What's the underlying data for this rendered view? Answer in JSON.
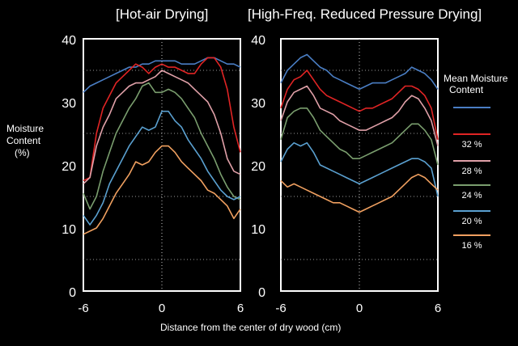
{
  "chart_data": [
    {
      "type": "line",
      "title": "[Hot-air Drying]",
      "xlabel": "Distance from the center of dry wood (cm)",
      "ylabel": "Moisture Content (%)",
      "xlim": [
        -6,
        6
      ],
      "ylim": [
        0,
        40
      ],
      "xticks": [
        "-6",
        "0",
        "6"
      ],
      "yticks": [
        "0",
        "10",
        "20",
        "30",
        "40"
      ],
      "grid": "dotted horizontal at 5, 15, 25, 35; dotted vertical at 0",
      "series": [
        {
          "name": "",
          "color": "#4a7ec4",
          "x": [
            -6,
            -5.5,
            -5,
            -4.5,
            -4,
            -3.5,
            -3,
            -2.5,
            -2,
            -1.5,
            -1,
            -0.5,
            0,
            0.5,
            1,
            1.5,
            2,
            2.5,
            3,
            3.5,
            4,
            4.5,
            5,
            5.5,
            6
          ],
          "y": [
            31.5,
            32.5,
            33,
            33.5,
            34,
            34.5,
            35,
            35.5,
            35.5,
            36,
            36,
            36.5,
            36.5,
            36.5,
            36.5,
            36,
            36,
            36,
            36.5,
            37,
            37,
            36.5,
            36,
            36,
            35.5
          ]
        },
        {
          "name": "32 %",
          "color": "#e02424",
          "x": [
            -6,
            -5.5,
            -5,
            -4.5,
            -4,
            -3.5,
            -3,
            -2.5,
            -2,
            -1.5,
            -1,
            -0.5,
            0,
            0.5,
            1,
            1.5,
            2,
            2.5,
            3,
            3.5,
            4,
            4.5,
            5,
            5.5,
            6
          ],
          "y": [
            17.5,
            18,
            25,
            29,
            31,
            33,
            34,
            35,
            36,
            35.5,
            34.5,
            35.5,
            36,
            35.5,
            35.5,
            35,
            34.5,
            34.5,
            36,
            37,
            37,
            35.5,
            32,
            26,
            22
          ]
        },
        {
          "name": "28 %",
          "color": "#e0a0a8",
          "x": [
            -6,
            -5.5,
            -5,
            -4.5,
            -4,
            -3.5,
            -3,
            -2.5,
            -2,
            -1.5,
            -1,
            -0.5,
            0,
            0.5,
            1,
            1.5,
            2,
            2.5,
            3,
            3.5,
            4,
            4.5,
            5,
            5.5,
            6
          ],
          "y": [
            17,
            18,
            23,
            26,
            28,
            30.5,
            31.5,
            32.5,
            33,
            33,
            33.5,
            34,
            35,
            34.5,
            34,
            33.5,
            33,
            32,
            31,
            30,
            28,
            25,
            21,
            19,
            18.5
          ]
        },
        {
          "name": "24 %",
          "color": "#7a9e6e",
          "x": [
            -6,
            -5.5,
            -5,
            -4.5,
            -4,
            -3.5,
            -3,
            -2.5,
            -2,
            -1.5,
            -1,
            -0.5,
            0,
            0.5,
            1,
            1.5,
            2,
            2.5,
            3,
            3.5,
            4,
            4.5,
            5,
            5.5,
            6
          ],
          "y": [
            15.5,
            13,
            15,
            19,
            22,
            25,
            27,
            29,
            30.5,
            32.5,
            33,
            31.5,
            31.5,
            32,
            31.5,
            30.5,
            29,
            27.5,
            25,
            23,
            21,
            18.5,
            16.5,
            15,
            14.5
          ]
        },
        {
          "name": "20 %",
          "color": "#5aa0d0",
          "x": [
            -6,
            -5.5,
            -5,
            -4.5,
            -4,
            -3.5,
            -3,
            -2.5,
            -2,
            -1.5,
            -1,
            -0.5,
            0,
            0.5,
            1,
            1.5,
            2,
            2.5,
            3,
            3.5,
            4,
            4.5,
            5,
            5.5,
            6
          ],
          "y": [
            12,
            10.5,
            12,
            14,
            17,
            19,
            21,
            23,
            24.5,
            26,
            25.5,
            26,
            28.5,
            28.5,
            27,
            26,
            24,
            22.5,
            21,
            19,
            17.5,
            16,
            15,
            14.5,
            15
          ]
        },
        {
          "name": "16 %",
          "color": "#f0a060",
          "x": [
            -6,
            -5.5,
            -5,
            -4.5,
            -4,
            -3.5,
            -3,
            -2.5,
            -2,
            -1.5,
            -1,
            -0.5,
            0,
            0.5,
            1,
            1.5,
            2,
            2.5,
            3,
            3.5,
            4,
            4.5,
            5,
            5.5,
            6
          ],
          "y": [
            9,
            9.5,
            10,
            11.5,
            13.5,
            15.5,
            17,
            18.5,
            20.5,
            20,
            20.5,
            22,
            23,
            23,
            22,
            20.5,
            19.5,
            18.5,
            17.5,
            16,
            15.5,
            14.5,
            13.5,
            11.5,
            13
          ]
        }
      ]
    },
    {
      "type": "line",
      "title": "[High-Freq. Reduced Pressure Drying]",
      "xlabel": "Distance from the center of dry wood (cm)",
      "ylabel": "Moisture Content (%)",
      "xlim": [
        -6,
        6
      ],
      "ylim": [
        0,
        40
      ],
      "xticks": [
        "-6",
        "0",
        "6"
      ],
      "yticks": [
        "0",
        "10",
        "20",
        "30",
        "40"
      ],
      "grid": "dotted horizontal at 5, 15, 25, 35; dotted vertical at 0",
      "series": [
        {
          "name": "",
          "color": "#4a7ec4",
          "x": [
            -6,
            -5.5,
            -5,
            -4.5,
            -4,
            -3.5,
            -3,
            -2.5,
            -2,
            -1.5,
            -1,
            -0.5,
            0,
            0.5,
            1,
            1.5,
            2,
            2.5,
            3,
            3.5,
            4,
            4.5,
            5,
            5.5,
            6
          ],
          "y": [
            33,
            35,
            36,
            37,
            37.5,
            36.5,
            35.5,
            35,
            34,
            33.5,
            33,
            32.5,
            32,
            32.5,
            33,
            33,
            33,
            33.5,
            34,
            34.5,
            35.5,
            35,
            34.5,
            33.5,
            32
          ]
        },
        {
          "name": "32 %",
          "color": "#e02424",
          "x": [
            -6,
            -5.5,
            -5,
            -4.5,
            -4,
            -3.5,
            -3,
            -2.5,
            -2,
            -1.5,
            -1,
            -0.5,
            0,
            0.5,
            1,
            1.5,
            2,
            2.5,
            3,
            3.5,
            4,
            4.5,
            5,
            5.5,
            6
          ],
          "y": [
            29,
            32,
            33.5,
            34,
            35,
            33.5,
            32,
            31,
            30.5,
            30,
            29.5,
            29,
            28.5,
            29,
            29,
            29.5,
            30,
            30.5,
            31.5,
            32.5,
            32.5,
            32,
            31,
            29,
            24
          ]
        },
        {
          "name": "28 %",
          "color": "#e0a0a8",
          "x": [
            -6,
            -5.5,
            -5,
            -4.5,
            -4,
            -3.5,
            -3,
            -2.5,
            -2,
            -1.5,
            -1,
            -0.5,
            0,
            0.5,
            1,
            1.5,
            2,
            2.5,
            3,
            3.5,
            4,
            4.5,
            5,
            5.5,
            6
          ],
          "y": [
            27,
            30,
            31.5,
            32,
            32.5,
            31,
            29,
            28.5,
            28,
            27,
            26.5,
            26,
            25.5,
            25.5,
            26,
            26.5,
            27,
            27.5,
            28.5,
            30,
            31,
            30.5,
            29,
            27,
            23
          ]
        },
        {
          "name": "24 %",
          "color": "#7a9e6e",
          "x": [
            -6,
            -5.5,
            -5,
            -4.5,
            -4,
            -3.5,
            -3,
            -2.5,
            -2,
            -1.5,
            -1,
            -0.5,
            0,
            0.5,
            1,
            1.5,
            2,
            2.5,
            3,
            3.5,
            4,
            4.5,
            5,
            5.5,
            6
          ],
          "y": [
            24,
            27.5,
            28.5,
            29,
            29,
            27.5,
            25.5,
            24.5,
            23.5,
            22.5,
            22,
            21,
            21,
            21.5,
            22,
            22.5,
            23,
            23.5,
            24.5,
            25.5,
            26.5,
            26.5,
            25.5,
            24,
            20
          ]
        },
        {
          "name": "20 %",
          "color": "#5aa0d0",
          "x": [
            -6,
            -5.5,
            -5,
            -4.5,
            -4,
            -3.5,
            -3,
            -2.5,
            -2,
            -1.5,
            -1,
            -0.5,
            0,
            0.5,
            1,
            1.5,
            2,
            2.5,
            3,
            3.5,
            4,
            4.5,
            5,
            5.5,
            6
          ],
          "y": [
            20.5,
            22.5,
            23.5,
            23,
            23.5,
            22,
            20,
            19.5,
            19,
            18.5,
            18,
            17.5,
            17,
            17.5,
            18,
            18.5,
            19,
            19.5,
            20,
            20.5,
            21,
            21,
            20.5,
            19.5,
            15
          ]
        },
        {
          "name": "16 %",
          "color": "#f0a060",
          "x": [
            -6,
            -5.5,
            -5,
            -4.5,
            -4,
            -3.5,
            -3,
            -2.5,
            -2,
            -1.5,
            -1,
            -0.5,
            0,
            0.5,
            1,
            1.5,
            2,
            2.5,
            3,
            3.5,
            4,
            4.5,
            5,
            5.5,
            6
          ],
          "y": [
            17.5,
            16.5,
            17,
            16.5,
            16,
            15.5,
            15,
            14.5,
            14,
            14,
            13.5,
            13,
            12.5,
            13,
            13.5,
            14,
            14.5,
            15,
            16,
            17,
            18,
            18.5,
            18,
            17,
            16
          ]
        }
      ]
    }
  ],
  "page": {
    "title_left": "[Hot-air Drying]",
    "title_right": "[High-Freq. Reduced Pressure Drying]",
    "ylabel_lines": [
      "Moisture",
      "Content",
      "(%)"
    ],
    "xlabel": "Distance from the center of dry wood (cm)",
    "legend_title_lines": [
      "Mean Moisture",
      "Content"
    ],
    "legend": [
      {
        "label": "",
        "color": "#4a7ec4"
      },
      {
        "label": "32 %",
        "color": "#e02424"
      },
      {
        "label": "28 %",
        "color": "#e0a0a8"
      },
      {
        "label": "24 %",
        "color": "#7a9e6e"
      },
      {
        "label": "20 %",
        "color": "#5aa0d0"
      },
      {
        "label": "16 %",
        "color": "#f0a060"
      }
    ]
  }
}
